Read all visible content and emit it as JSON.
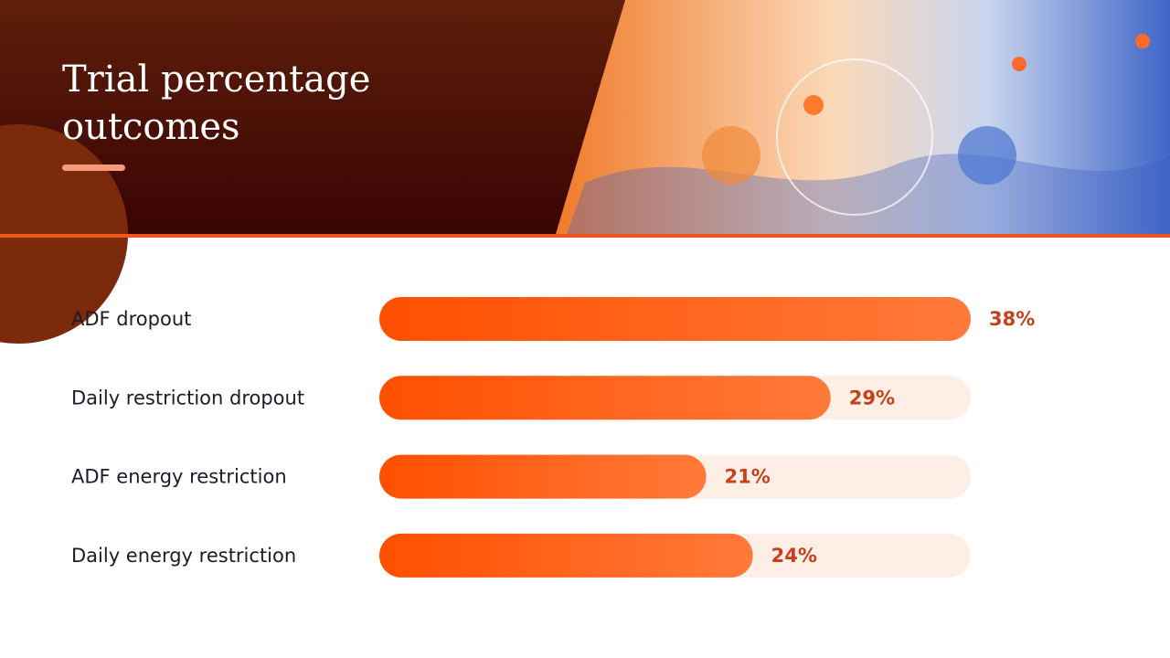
{
  "chart_data": {
    "type": "bar",
    "orientation": "horizontal",
    "title": "Trial percentage outcomes",
    "categories": [
      "ADF dropout",
      "Daily restriction dropout",
      "ADF energy restriction",
      "Daily energy restriction"
    ],
    "values": [
      38,
      29,
      21,
      24
    ],
    "value_labels": [
      "38%",
      "29%",
      "21%",
      "24%"
    ],
    "xlim": [
      0,
      38
    ],
    "color": "#ff5a0a",
    "track_color": "#fdeee6"
  }
}
